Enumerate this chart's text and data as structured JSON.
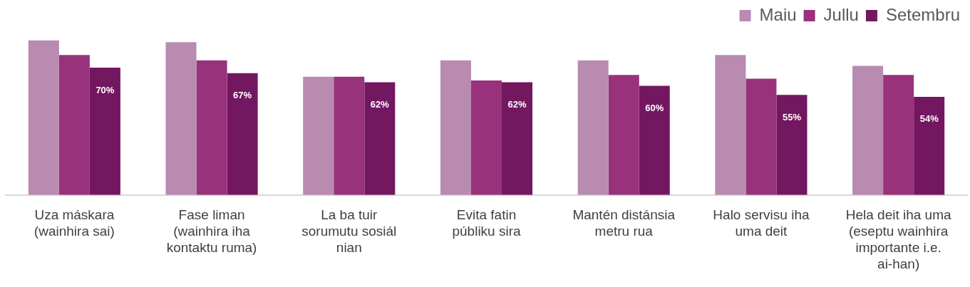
{
  "chart_data": {
    "type": "bar",
    "categories": [
      "Uza máskara (wainhira sai)",
      "Fase liman (wainhira iha kontaktu ruma)",
      "La ba tuir sorumutu sosiál nian",
      "Evita fatin públiku sira",
      "Mantén distánsia metru rua",
      "Halo servisu iha uma deit",
      "Hela deit iha uma (eseptu wainhira importante i.e. ai-han)"
    ],
    "series": [
      {
        "name": "Maiu",
        "color": "#b98bb0",
        "values": [
          85,
          84,
          65,
          74,
          74,
          77,
          71
        ]
      },
      {
        "name": "Jullu",
        "color": "#98327b",
        "values": [
          77,
          74,
          65,
          63,
          66,
          64,
          66
        ]
      },
      {
        "name": "Setembru",
        "color": "#731760",
        "values": [
          70,
          67,
          62,
          62,
          60,
          55,
          54
        ],
        "value_labels": [
          "70%",
          "67%",
          "62%",
          "62%",
          "60%",
          "55%",
          "54%"
        ]
      }
    ],
    "tick_labels": "x",
    "grid": false,
    "legend": "top right"
  }
}
